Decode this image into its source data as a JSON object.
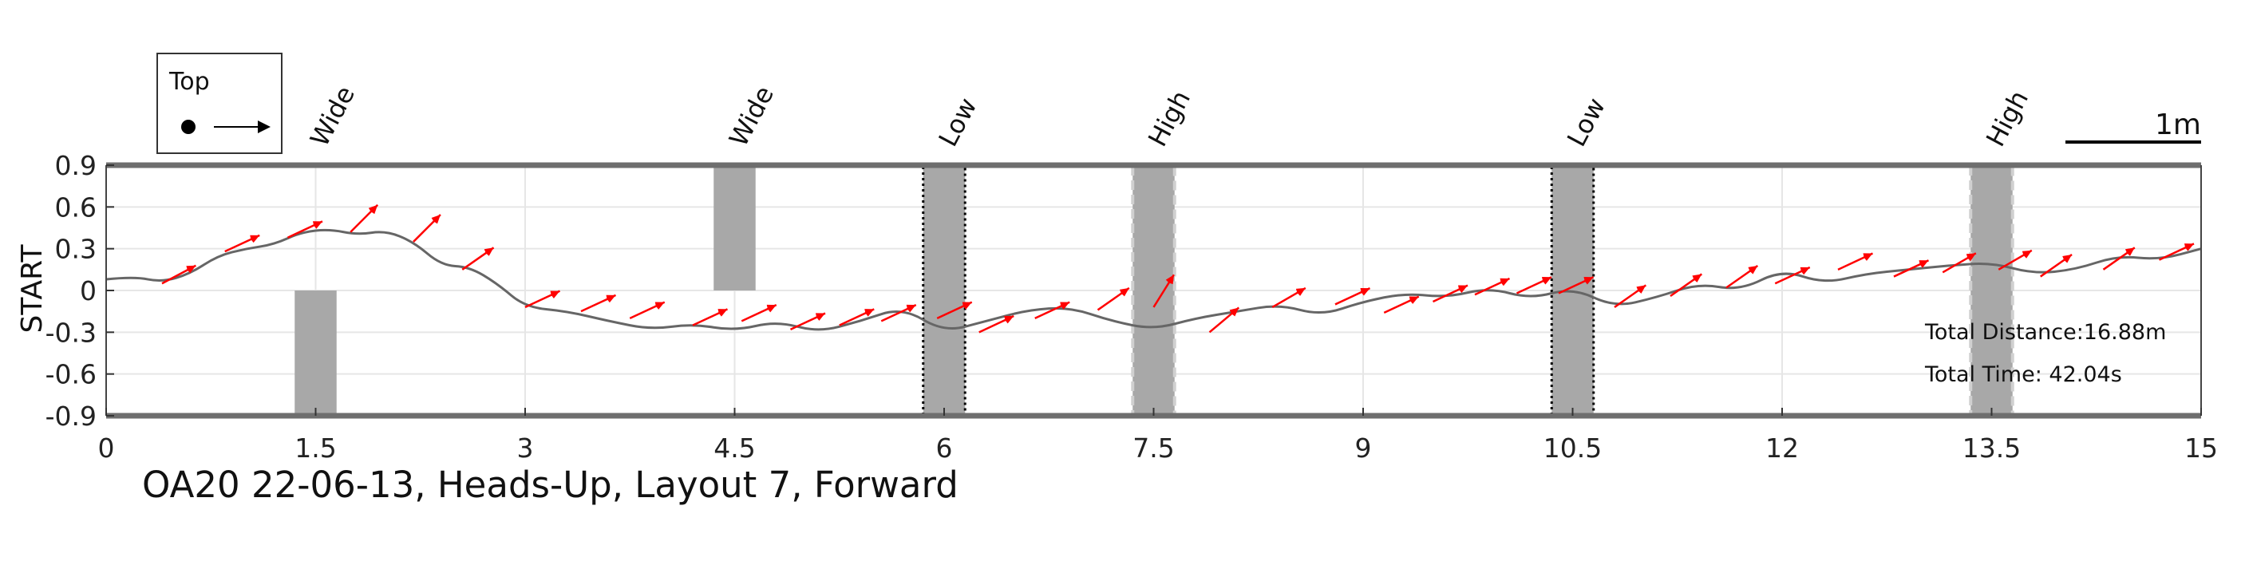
{
  "chart_data": {
    "type": "line",
    "title": "OA20 22-06-13, Heads-Up, Layout 7, Forward",
    "xlabel": "",
    "ylabel": "START",
    "xlim": [
      0,
      15
    ],
    "ylim": [
      -0.9,
      0.9
    ],
    "x_ticks": [
      "0",
      "1.5",
      "3",
      "4.5",
      "6",
      "7.5",
      "9",
      "10.5",
      "12",
      "13.5",
      "15"
    ],
    "y_ticks": [
      "0.9",
      "0.6",
      "0.3",
      "0",
      "-0.3",
      "-0.6",
      "-0.9"
    ],
    "grid": true,
    "series": [
      {
        "color": "#666666",
        "x": [
          0,
          0.2,
          0.4,
          0.6,
          0.8,
          1.0,
          1.2,
          1.4,
          1.6,
          1.8,
          2.0,
          2.2,
          2.4,
          2.6,
          2.8,
          3.0,
          3.3,
          3.6,
          3.9,
          4.2,
          4.5,
          4.8,
          5.1,
          5.4,
          5.7,
          6.0,
          6.3,
          6.6,
          6.9,
          7.2,
          7.5,
          7.8,
          8.1,
          8.4,
          8.7,
          9.0,
          9.3,
          9.6,
          9.9,
          10.2,
          10.5,
          10.8,
          11.1,
          11.4,
          11.7,
          12.0,
          12.3,
          12.6,
          12.9,
          13.2,
          13.5,
          13.8,
          14.1,
          14.4,
          14.7,
          15.0
        ],
        "y": [
          0.08,
          0.1,
          0.06,
          0.12,
          0.25,
          0.3,
          0.33,
          0.42,
          0.44,
          0.4,
          0.43,
          0.35,
          0.18,
          0.17,
          0.05,
          -0.12,
          -0.15,
          -0.22,
          -0.28,
          -0.24,
          -0.29,
          -0.22,
          -0.3,
          -0.22,
          -0.12,
          -0.3,
          -0.22,
          -0.14,
          -0.12,
          -0.22,
          -0.28,
          -0.2,
          -0.15,
          -0.1,
          -0.18,
          -0.08,
          -0.02,
          -0.05,
          0.02,
          -0.06,
          0.02,
          -0.12,
          -0.05,
          0.05,
          0.0,
          0.15,
          0.05,
          0.12,
          0.15,
          0.18,
          0.2,
          0.12,
          0.15,
          0.25,
          0.22,
          0.3
        ]
      }
    ],
    "heading_arrows": {
      "color": "#ff0000",
      "x": [
        0.4,
        0.85,
        1.3,
        1.75,
        2.2,
        2.55,
        3.0,
        3.4,
        3.75,
        4.2,
        4.55,
        4.9,
        5.25,
        5.55,
        5.95,
        6.25,
        6.65,
        7.1,
        7.5,
        7.9,
        8.35,
        8.8,
        9.15,
        9.5,
        9.8,
        10.1,
        10.4,
        10.8,
        11.2,
        11.6,
        11.95,
        12.4,
        12.8,
        13.15,
        13.55,
        13.85,
        14.3,
        14.7
      ],
      "y": [
        0.05,
        0.28,
        0.38,
        0.42,
        0.35,
        0.15,
        -0.12,
        -0.15,
        -0.2,
        -0.25,
        -0.22,
        -0.28,
        -0.25,
        -0.22,
        -0.2,
        -0.3,
        -0.2,
        -0.14,
        -0.12,
        -0.3,
        -0.12,
        -0.1,
        -0.16,
        -0.08,
        -0.03,
        -0.02,
        -0.02,
        -0.12,
        -0.04,
        0.02,
        0.05,
        0.15,
        0.1,
        0.13,
        0.15,
        0.1,
        0.15,
        0.22
      ],
      "angle_deg": [
        28,
        25,
        25,
        45,
        45,
        35,
        25,
        25,
        25,
        25,
        25,
        25,
        25,
        25,
        25,
        25,
        25,
        35,
        58,
        40,
        30,
        25,
        25,
        25,
        25,
        25,
        25,
        35,
        35,
        35,
        25,
        25,
        25,
        30,
        30,
        35,
        35,
        25
      ]
    },
    "obstacles": [
      {
        "label": "Wide",
        "x_range": [
          1.35,
          1.65
        ],
        "y_range": [
          -0.9,
          0.0
        ],
        "style": "plain"
      },
      {
        "label": "Wide",
        "x_range": [
          4.35,
          4.65
        ],
        "y_range": [
          0.0,
          0.9
        ],
        "style": "plain"
      },
      {
        "label": "Low",
        "x_range": [
          5.85,
          6.15
        ],
        "y_range": [
          -0.9,
          0.9
        ],
        "style": "dotted"
      },
      {
        "label": "High",
        "x_range": [
          7.35,
          7.65
        ],
        "y_range": [
          -0.9,
          0.9
        ],
        "style": "dashed"
      },
      {
        "label": "Low",
        "x_range": [
          10.35,
          10.65
        ],
        "y_range": [
          -0.9,
          0.9
        ],
        "style": "dotted"
      },
      {
        "label": "High",
        "x_range": [
          13.35,
          13.65
        ],
        "y_range": [
          -0.9,
          0.9
        ],
        "style": "dashed"
      }
    ],
    "annotations": {
      "distance": "Total Distance:16.88m",
      "time": "Total Time: 42.04s",
      "scale": "1m"
    },
    "legend": {
      "label": "Top",
      "position": "top-left"
    }
  }
}
